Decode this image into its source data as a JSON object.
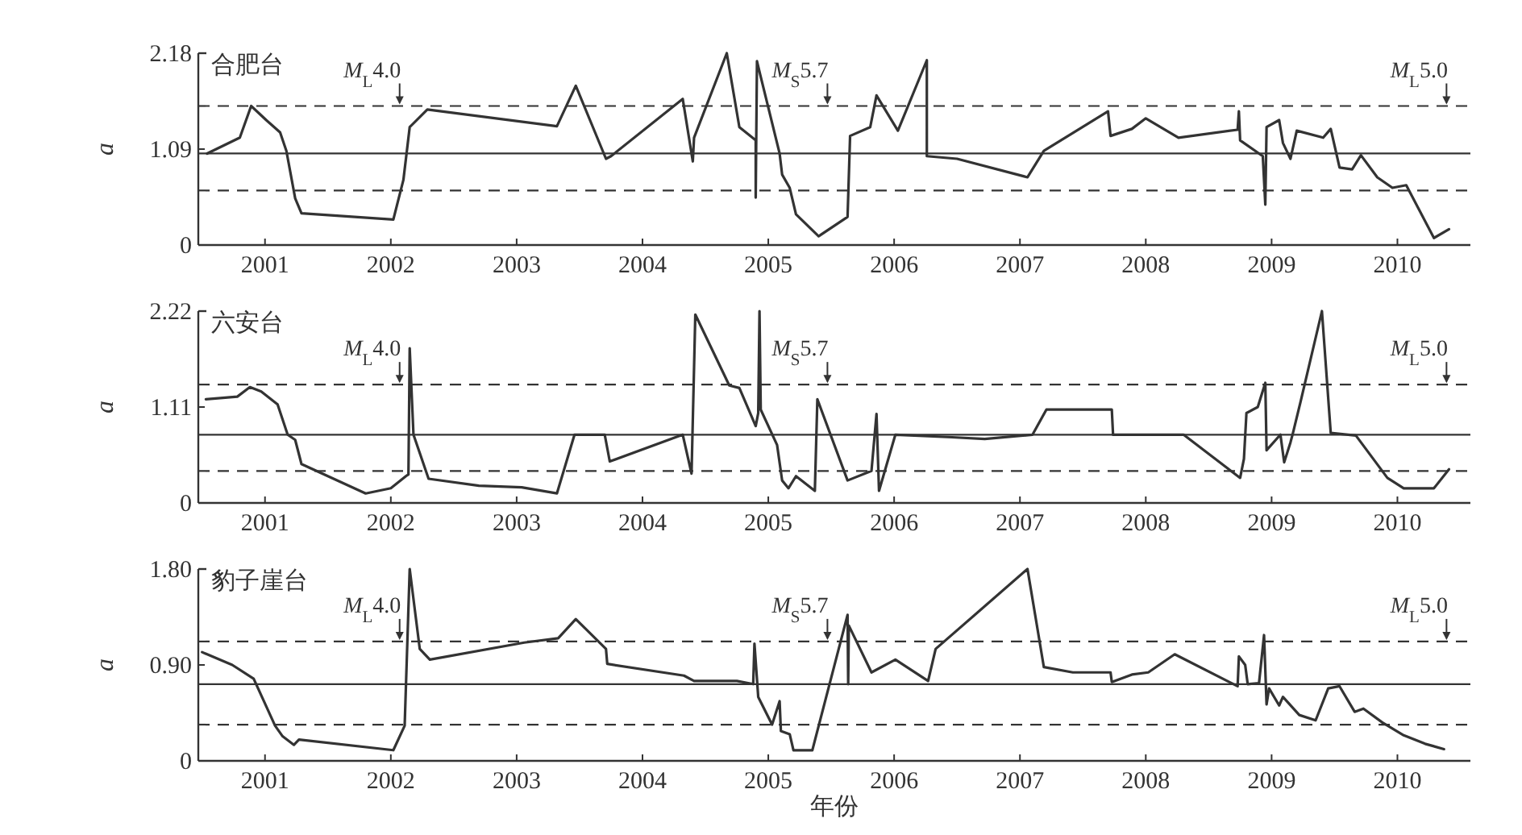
{
  "chart_data": [
    {
      "type": "line",
      "title": "合肥台",
      "ylabel": "a",
      "xlim": [
        2000.97,
        2011.08
      ],
      "ylim": [
        0,
        2.18
      ],
      "xticks": [
        {
          "value": 2001.5,
          "label": "2001"
        },
        {
          "value": 2002.5,
          "label": "2002"
        },
        {
          "value": 2003.5,
          "label": "2003"
        },
        {
          "value": 2004.5,
          "label": "2004"
        },
        {
          "value": 2005.5,
          "label": "2005"
        },
        {
          "value": 2006.5,
          "label": "2006"
        },
        {
          "value": 2007.5,
          "label": "2007"
        },
        {
          "value": 2008.5,
          "label": "2008"
        },
        {
          "value": 2009.5,
          "label": "2009"
        },
        {
          "value": 2010.5,
          "label": "2010"
        }
      ],
      "yticks": [
        {
          "value": 0,
          "label": "0"
        },
        {
          "value": 1.09,
          "label": "1.09"
        },
        {
          "value": 2.18,
          "label": "2.18"
        }
      ],
      "grid": false,
      "marker": "none",
      "line_style": "solid",
      "ref_lines": [
        {
          "axis": "y",
          "value": 1.04,
          "line_style": "solid",
          "color": "#333333"
        },
        {
          "axis": "y",
          "value": 1.58,
          "line_style": "dashed",
          "color": "#333333"
        },
        {
          "axis": "y",
          "value": 0.62,
          "line_style": "dashed",
          "color": "#333333"
        }
      ],
      "annotations": [
        {
          "text": "*M*$_{L}$4.0",
          "x": 2002.57,
          "y": 1.58
        },
        {
          "text": "*M*$_{S}$5.7",
          "x": 2005.97,
          "y": 1.58
        },
        {
          "text": "*M*$_{L}$5.0",
          "x": 2010.89,
          "y": 1.58
        }
      ],
      "series": [
        {
          "color": "#333333",
          "x": [
            2001.04,
            2001.3,
            2001.39,
            2001.51,
            2001.62,
            2001.67,
            2001.74,
            2001.79,
            2002.52,
            2002.6,
            2002.65,
            2002.79,
            2003.82,
            2003.97,
            2004.21,
            2004.25,
            2004.82,
            2004.9,
            2004.91,
            2005.17,
            2005.27,
            2005.4,
            2005.4,
            2005.41,
            2005.44,
            2005.59,
            2005.61,
            2005.67,
            2005.72,
            2005.9,
            2006.13,
            2006.15,
            2006.31,
            2006.36,
            2006.53,
            2006.76,
            2006.76,
            2007.0,
            2007.56,
            2007.69,
            2008.2,
            2008.22,
            2008.39,
            2008.5,
            2008.76,
            2009.23,
            2009.24,
            2009.25,
            2009.43,
            2009.45,
            2009.46,
            2009.56,
            2009.59,
            2009.65,
            2009.7,
            2009.91,
            2009.97,
            2010.04,
            2010.14,
            2010.21,
            2010.34,
            2010.46,
            2010.57,
            2010.79,
            2010.91
          ],
          "values": [
            1.04,
            1.22,
            1.58,
            1.42,
            1.28,
            1.07,
            0.53,
            0.36,
            0.29,
            0.74,
            1.34,
            1.54,
            1.35,
            1.81,
            0.98,
            1.01,
            1.66,
            0.95,
            1.22,
            2.18,
            1.34,
            1.19,
            0.54,
            2.09,
            1.91,
            1.04,
            0.8,
            0.65,
            0.35,
            0.1,
            0.32,
            1.24,
            1.34,
            1.7,
            1.3,
            2.1,
            1.01,
            0.98,
            0.77,
            1.07,
            1.52,
            1.24,
            1.32,
            1.44,
            1.22,
            1.31,
            1.52,
            1.19,
            1.01,
            0.46,
            1.34,
            1.42,
            1.16,
            0.98,
            1.3,
            1.22,
            1.32,
            0.88,
            0.86,
            1.02,
            0.77,
            0.65,
            0.68,
            0.08,
            0.18
          ]
        }
      ]
    },
    {
      "type": "line",
      "title": "六安台",
      "ylabel": "a",
      "xlim": [
        2000.97,
        2011.08
      ],
      "ylim": [
        0,
        2.22
      ],
      "xticks": [
        {
          "value": 2001.5,
          "label": "2001"
        },
        {
          "value": 2002.5,
          "label": "2002"
        },
        {
          "value": 2003.5,
          "label": "2003"
        },
        {
          "value": 2004.5,
          "label": "2004"
        },
        {
          "value": 2005.5,
          "label": "2005"
        },
        {
          "value": 2006.5,
          "label": "2006"
        },
        {
          "value": 2007.5,
          "label": "2007"
        },
        {
          "value": 2008.5,
          "label": "2008"
        },
        {
          "value": 2009.5,
          "label": "2009"
        },
        {
          "value": 2010.5,
          "label": "2010"
        }
      ],
      "yticks": [
        {
          "value": 0,
          "label": "0"
        },
        {
          "value": 1.11,
          "label": "1.11"
        },
        {
          "value": 2.22,
          "label": "2.22"
        }
      ],
      "grid": false,
      "marker": "none",
      "line_style": "solid",
      "ref_lines": [
        {
          "axis": "y",
          "value": 0.79,
          "line_style": "solid",
          "color": "#333333"
        },
        {
          "axis": "y",
          "value": 1.37,
          "line_style": "dashed",
          "color": "#333333"
        },
        {
          "axis": "y",
          "value": 0.37,
          "line_style": "dashed",
          "color": "#333333"
        }
      ],
      "annotations": [
        {
          "text": "*M*$_{L}$4.0",
          "x": 2002.57,
          "y": 1.37
        },
        {
          "text": "*M*$_{S}$5.7",
          "x": 2005.97,
          "y": 1.37
        },
        {
          "text": "*M*$_{L}$5.0",
          "x": 2010.89,
          "y": 1.37
        }
      ],
      "series": [
        {
          "color": "#333333",
          "x": [
            2001.03,
            2001.28,
            2001.38,
            2001.47,
            2001.6,
            2001.68,
            2001.74,
            2001.79,
            2002.3,
            2002.5,
            2002.62,
            2002.64,
            2002.65,
            2002.68,
            2002.8,
            2003.2,
            2003.54,
            2003.82,
            2003.96,
            2004.2,
            2004.24,
            2004.82,
            2004.89,
            2004.92,
            2005.19,
            2005.27,
            2005.4,
            2005.42,
            2005.43,
            2005.44,
            2005.57,
            2005.61,
            2005.66,
            2005.72,
            2005.87,
            2005.89,
            2006.13,
            2006.32,
            2006.36,
            2006.38,
            2006.51,
            2006.96,
            2007.22,
            2007.6,
            2007.71,
            2008.23,
            2008.24,
            2008.8,
            2009.25,
            2009.28,
            2009.3,
            2009.39,
            2009.45,
            2009.46,
            2009.57,
            2009.6,
            2009.65,
            2009.67,
            2009.73,
            2009.9,
            2009.97,
            2010.17,
            2010.42,
            2010.55,
            2010.79,
            2010.91
          ],
          "values": [
            1.2,
            1.23,
            1.34,
            1.29,
            1.14,
            0.79,
            0.73,
            0.45,
            0.11,
            0.17,
            0.31,
            0.33,
            1.79,
            0.79,
            0.28,
            0.2,
            0.18,
            0.11,
            0.79,
            0.79,
            0.48,
            0.79,
            0.34,
            2.18,
            1.36,
            1.33,
            0.89,
            1.04,
            2.22,
            1.08,
            0.67,
            0.26,
            0.17,
            0.31,
            0.14,
            1.2,
            0.26,
            0.37,
            1.03,
            0.14,
            0.79,
            0.76,
            0.74,
            0.79,
            1.08,
            1.08,
            0.79,
            0.79,
            0.29,
            0.51,
            1.04,
            1.11,
            1.39,
            0.61,
            0.79,
            0.47,
            0.7,
            0.81,
            1.17,
            2.22,
            0.81,
            0.78,
            0.29,
            0.17,
            0.17,
            0.39
          ]
        }
      ]
    },
    {
      "type": "line",
      "title": "豹子崖台",
      "ylabel": "a",
      "xlabel": "年份",
      "xlim": [
        2000.97,
        2011.08
      ],
      "ylim": [
        0,
        1.8
      ],
      "xticks": [
        {
          "value": 2001.5,
          "label": "2001"
        },
        {
          "value": 2002.5,
          "label": "2002"
        },
        {
          "value": 2003.5,
          "label": "2003"
        },
        {
          "value": 2004.5,
          "label": "2004"
        },
        {
          "value": 2005.5,
          "label": "2005"
        },
        {
          "value": 2006.5,
          "label": "2006"
        },
        {
          "value": 2007.5,
          "label": "2007"
        },
        {
          "value": 2008.5,
          "label": "2008"
        },
        {
          "value": 2009.5,
          "label": "2009"
        },
        {
          "value": 2010.5,
          "label": "2010"
        }
      ],
      "yticks": [
        {
          "value": 0,
          "label": "0"
        },
        {
          "value": 0.9,
          "label": "0.90"
        },
        {
          "value": 1.8,
          "label": "1.80"
        }
      ],
      "grid": false,
      "marker": "none",
      "line_style": "solid",
      "ref_lines": [
        {
          "axis": "y",
          "value": 0.72,
          "line_style": "solid",
          "color": "#333333"
        },
        {
          "axis": "y",
          "value": 1.12,
          "line_style": "dashed",
          "color": "#333333"
        },
        {
          "axis": "y",
          "value": 0.34,
          "line_style": "dashed",
          "color": "#333333"
        }
      ],
      "annotations": [
        {
          "text": "*M*$_{L}$4.0",
          "x": 2002.57,
          "y": 1.12
        },
        {
          "text": "*M*$_{S}$5.7",
          "x": 2005.97,
          "y": 1.12
        },
        {
          "text": "*M*$_{L}$5.0",
          "x": 2010.89,
          "y": 1.12
        }
      ],
      "series": [
        {
          "color": "#333333",
          "x": [
            2001.0,
            2001.24,
            2001.41,
            2001.58,
            2001.64,
            2001.73,
            2001.77,
            2002.52,
            2002.61,
            2002.65,
            2002.73,
            2002.81,
            2003.56,
            2003.83,
            2003.97,
            2004.21,
            2004.22,
            2004.83,
            2004.91,
            2005.25,
            2005.38,
            2005.39,
            2005.42,
            2005.53,
            2005.59,
            2005.6,
            2005.67,
            2005.7,
            2005.85,
            2006.13,
            2006.135,
            2006.14,
            2006.32,
            2006.51,
            2006.77,
            2006.83,
            2007.56,
            2007.69,
            2007.92,
            2008.22,
            2008.23,
            2008.39,
            2008.52,
            2008.73,
            2009.23,
            2009.24,
            2009.29,
            2009.31,
            2009.4,
            2009.44,
            2009.46,
            2009.48,
            2009.56,
            2009.59,
            2009.72,
            2009.85,
            2009.95,
            2010.04,
            2010.16,
            2010.23,
            2010.38,
            2010.55,
            2010.72,
            2010.87
          ],
          "values": [
            1.02,
            0.9,
            0.77,
            0.33,
            0.23,
            0.15,
            0.2,
            0.1,
            0.33,
            1.8,
            1.05,
            0.95,
            1.11,
            1.15,
            1.33,
            1.05,
            0.91,
            0.8,
            0.75,
            0.75,
            0.72,
            1.1,
            0.6,
            0.34,
            0.56,
            0.28,
            0.25,
            0.1,
            0.1,
            1.37,
            0.72,
            1.27,
            0.83,
            0.95,
            0.75,
            1.05,
            1.8,
            0.88,
            0.83,
            0.83,
            0.74,
            0.81,
            0.83,
            1.0,
            0.7,
            0.98,
            0.9,
            0.72,
            0.73,
            1.18,
            0.53,
            0.68,
            0.52,
            0.6,
            0.43,
            0.38,
            0.68,
            0.7,
            0.46,
            0.49,
            0.36,
            0.24,
            0.16,
            0.11
          ]
        }
      ]
    }
  ]
}
